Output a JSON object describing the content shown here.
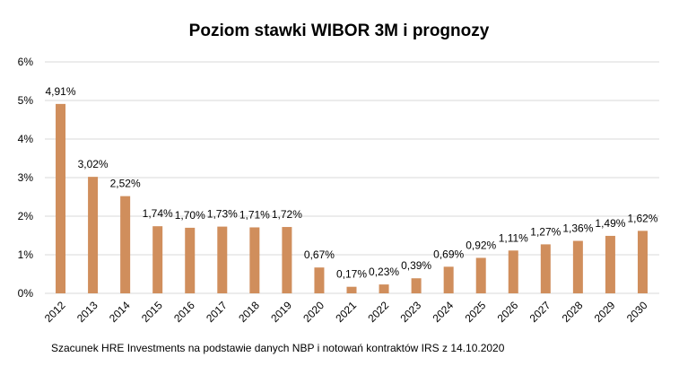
{
  "chart_data": {
    "type": "bar",
    "title": "Poziom stawki WIBOR 3M i prognozy",
    "xlabel": "",
    "ylabel": "",
    "ylim": [
      0,
      6
    ],
    "yticks": [
      "0%",
      "1%",
      "2%",
      "3%",
      "4%",
      "5%",
      "6%"
    ],
    "grid": true,
    "bar_color": "#D08E5C",
    "categories": [
      "2012",
      "2013",
      "2014",
      "2015",
      "2016",
      "2017",
      "2018",
      "2019",
      "2020",
      "2021",
      "2022",
      "2023",
      "2024",
      "2025",
      "2026",
      "2027",
      "2028",
      "2029",
      "2030"
    ],
    "values": [
      4.91,
      3.02,
      2.52,
      1.74,
      1.7,
      1.73,
      1.71,
      1.72,
      0.67,
      0.17,
      0.23,
      0.39,
      0.69,
      0.92,
      1.11,
      1.27,
      1.36,
      1.49,
      1.62
    ],
    "data_labels": [
      "4,91%",
      "3,02%",
      "2,52%",
      "1,74%",
      "1,70%",
      "1,73%",
      "1,71%",
      "1,72%",
      "0,67%",
      "0,17%",
      "0,23%",
      "0,39%",
      "0,69%",
      "0,92%",
      "1,11%",
      "1,27%",
      "1,36%",
      "1,49%",
      "1,62%"
    ]
  },
  "footnote": "Szacunek HRE Investments na podstawie danych NBP i notowań kontraktów IRS z 14.10.2020"
}
